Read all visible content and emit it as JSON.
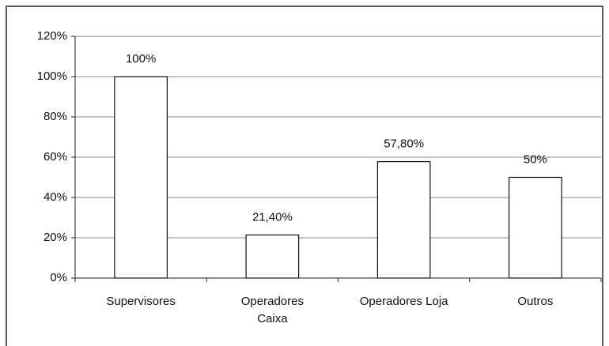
{
  "chart_data": {
    "type": "bar",
    "categories": [
      "Supervisores",
      [
        "Operadores",
        "Caixa"
      ],
      "Operadores Loja",
      "Outros"
    ],
    "values": [
      100,
      21.4,
      57.8,
      50
    ],
    "value_labels": [
      "100%",
      "21,40%",
      "57,80%",
      "50%"
    ],
    "color": "#ffffff",
    "ylim": [
      0,
      120
    ],
    "yticks": [
      {
        "value": 0,
        "label": "0%"
      },
      {
        "value": 20,
        "label": "20%"
      },
      {
        "value": 40,
        "label": "40%"
      },
      {
        "value": 60,
        "label": "60%"
      },
      {
        "value": 80,
        "label": "80%"
      },
      {
        "value": 100,
        "label": "100%"
      },
      {
        "value": 120,
        "label": "120%"
      }
    ],
    "grid": true
  }
}
